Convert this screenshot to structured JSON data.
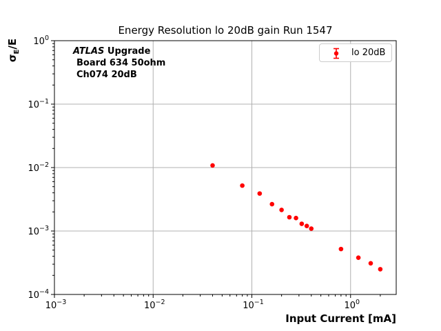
{
  "figure": {
    "title": "Energy Resolution lo 20dB gain Run 1547",
    "xlabel": "Input Current [mA]",
    "ylabel": {
      "sigma": "σ",
      "subscript": "E",
      "rest": "/E"
    },
    "annotation": {
      "line1_italic": "ATLAS",
      "line1_bold": " Upgrade",
      "line2": "Board 634 50ohm",
      "line3": "Ch074 20dB"
    },
    "legend": {
      "label": "lo 20dB"
    }
  },
  "colors": {
    "marker": "#ff0000",
    "grid": "#b0b0b0",
    "axis": "#000000",
    "legend_border": "#cccccc",
    "tick_label": "#000000"
  },
  "chart_data": {
    "type": "scatter",
    "title": "Energy Resolution lo 20dB gain Run 1547",
    "xlabel": "Input Current [mA]",
    "ylabel": "σ_E/E",
    "x_scale": "log",
    "y_scale": "log",
    "xlim": [
      0.001,
      2.9
    ],
    "ylim": [
      0.0001,
      1.0
    ],
    "x_tick_exponents": [
      -3,
      -2,
      -1,
      0
    ],
    "y_tick_exponents": [
      0,
      -1,
      -2,
      -3,
      -4
    ],
    "grid": true,
    "legend_position": "upper right",
    "series": [
      {
        "name": "lo 20dB",
        "color": "#ff0000",
        "marker": "circle-errorbar",
        "x": [
          0.04,
          0.08,
          0.12,
          0.16,
          0.2,
          0.24,
          0.28,
          0.32,
          0.36,
          0.4,
          0.8,
          1.2,
          1.6,
          2.0
        ],
        "y": [
          0.0108,
          0.0052,
          0.0039,
          0.00265,
          0.00215,
          0.00165,
          0.0016,
          0.0013,
          0.0012,
          0.00109,
          0.00052,
          0.00038,
          0.00031,
          0.00025
        ]
      }
    ]
  }
}
